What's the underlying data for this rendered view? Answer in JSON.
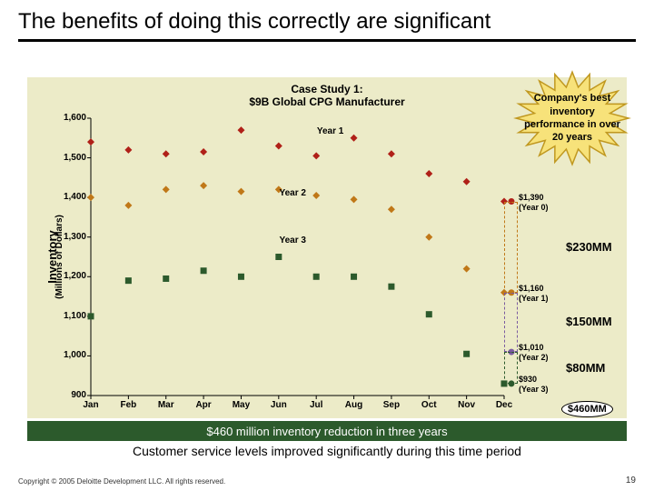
{
  "title": "The benefits of doing this correctly are significant",
  "chart": {
    "title_line1": "Case Study 1:",
    "title_line2": "$9B Global CPG Manufacturer",
    "starburst": {
      "text": "Company's best inventory performance in over 20 years",
      "fill": "#f7e27a",
      "stroke": "#c09820"
    },
    "y_axis": {
      "title": "Inventory",
      "subtitle": "(Millions of Dollars)",
      "min": 900,
      "max": 1600,
      "step": 100
    },
    "x_axis": {
      "labels": [
        "Jan",
        "Feb",
        "Mar",
        "Apr",
        "May",
        "Jun",
        "Jul",
        "Aug",
        "Sep",
        "Oct",
        "Nov",
        "Dec"
      ]
    },
    "series": [
      {
        "name": "Year 1",
        "color": "#b02018",
        "marker": "diamond",
        "values": [
          1540,
          1520,
          1510,
          1515,
          1570,
          1530,
          1505,
          1550,
          1510,
          1460,
          1440,
          1390
        ]
      },
      {
        "name": "Year 2",
        "color": "#c07818",
        "marker": "diamond",
        "values": [
          1400,
          1380,
          1420,
          1430,
          1415,
          1420,
          1405,
          1395,
          1370,
          1300,
          1220,
          1160
        ]
      },
      {
        "name": "Year 3",
        "color": "#2c5a2c",
        "marker": "square",
        "values": [
          1100,
          1190,
          1195,
          1215,
          1200,
          1250,
          1200,
          1200,
          1175,
          1105,
          1005,
          930
        ]
      }
    ],
    "series_labels": [
      {
        "text": "Year 1",
        "x": 6.5,
        "y": 1565
      },
      {
        "text": "Year 2",
        "x": 5.5,
        "y": 1410
      },
      {
        "text": "Year 3",
        "x": 5.5,
        "y": 1290
      }
    ],
    "references": [
      {
        "value": 1390,
        "label": "$1,390",
        "sublabel": "(Year 0)",
        "color": "#b02018"
      },
      {
        "value": 1160,
        "label": "$1,160",
        "sublabel": "(Year 1)",
        "color": "#c07818"
      },
      {
        "value": 1010,
        "label": "$1,010",
        "sublabel": "(Year 2)",
        "color": "#7a5aa0"
      },
      {
        "value": 930,
        "label": "$930",
        "sublabel": "(Year 3)",
        "color": "#2c5a2c"
      }
    ],
    "savings": [
      {
        "between": [
          1390,
          1160
        ],
        "label": "$230MM"
      },
      {
        "between": [
          1160,
          1010
        ],
        "label": "$150MM"
      },
      {
        "between": [
          1010,
          930
        ],
        "label": "$80MM"
      }
    ],
    "total_oval": "$460MM",
    "background": "#ecebc8"
  },
  "green_caption": "$460 million inventory reduction in three years",
  "caption2": "Customer service levels improved significantly during this time period",
  "footer": "Copyright © 2005 Deloitte Development LLC. All rights reserved.",
  "page": "19"
}
